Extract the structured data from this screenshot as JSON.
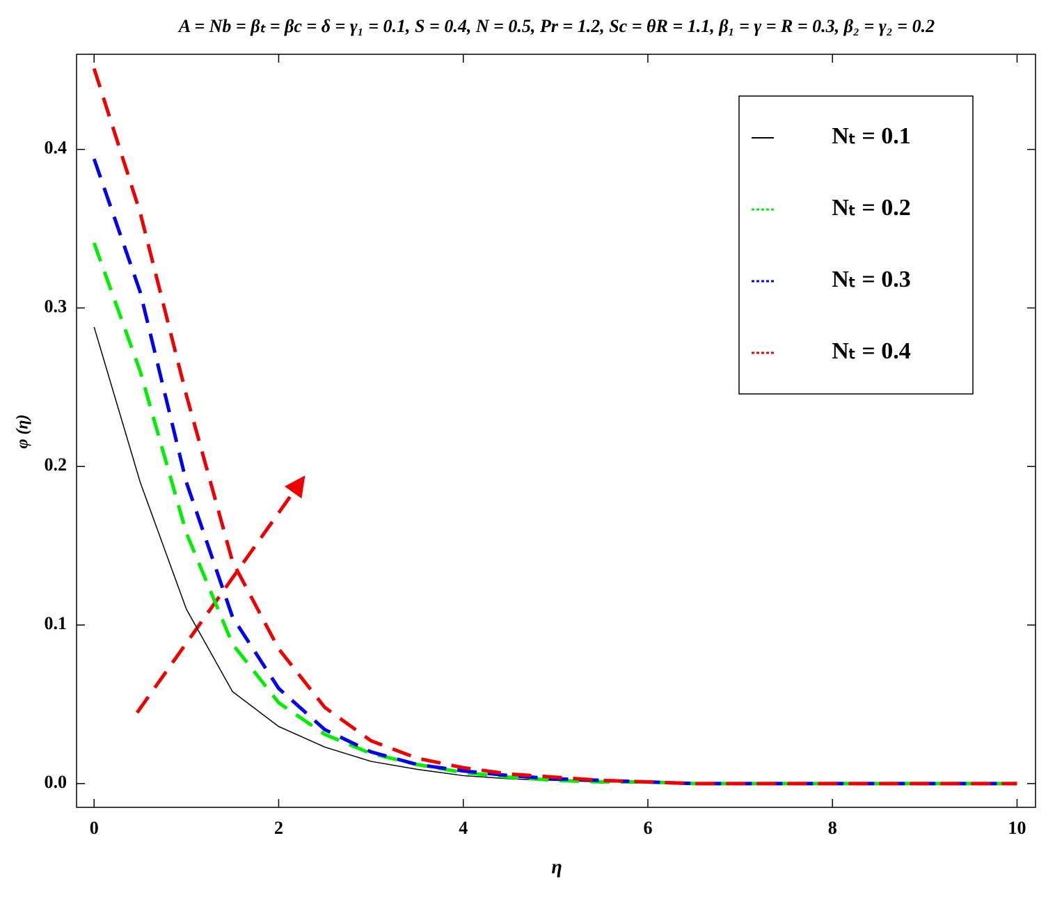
{
  "chart_data": {
    "type": "line",
    "title": "A = Nb = βₜ = βc = δ = γ₁ = 0.1, S = 0.4, N = 0.5, Pr = 1.2, Sc = θR = 1.1, β₁ = γ = R = 0.3, β₂ = γ₂ = 0.2",
    "x_label": "η",
    "y_label": "φ (η)",
    "x": [
      0,
      0.5,
      1,
      1.5,
      2,
      2.5,
      3,
      3.5,
      4,
      4.5,
      5,
      5.5,
      6,
      6.5,
      7,
      7.5,
      8,
      8.5,
      9,
      9.5,
      10
    ],
    "series": [
      {
        "name": "Nₜ = 0.1",
        "color": "#000000",
        "line_style": "solid",
        "values": [
          0.288,
          0.19,
          0.11,
          0.058,
          0.036,
          0.023,
          0.014,
          0.009,
          0.005,
          0.003,
          0.002,
          0.001,
          0.001,
          0,
          0,
          0,
          0,
          0,
          0,
          0,
          0
        ]
      },
      {
        "name": "Nₜ = 0.2",
        "color": "#00ee00",
        "line_style": "dashed",
        "values": [
          0.341,
          0.26,
          0.158,
          0.088,
          0.051,
          0.031,
          0.019,
          0.012,
          0.007,
          0.004,
          0.002,
          0.001,
          0.001,
          0,
          0,
          0,
          0,
          0,
          0,
          0,
          0
        ]
      },
      {
        "name": "Nₜ = 0.3",
        "color": "#0000ee",
        "line_style": "dashed",
        "values": [
          0.394,
          0.31,
          0.19,
          0.105,
          0.06,
          0.034,
          0.02,
          0.012,
          0.008,
          0.005,
          0.003,
          0.002,
          0.001,
          0,
          0,
          0,
          0,
          0,
          0,
          0,
          0
        ]
      },
      {
        "name": "Nₜ = 0.4",
        "color": "#ee0000",
        "line_style": "dashed",
        "values": [
          0.451,
          0.36,
          0.245,
          0.14,
          0.085,
          0.048,
          0.027,
          0.016,
          0.01,
          0.006,
          0.004,
          0.002,
          0.001,
          0,
          0,
          0,
          0,
          0,
          0,
          0,
          0
        ]
      }
    ],
    "xlim": [
      -0.19,
      10.2
    ],
    "ylim": [
      -0.015,
      0.46
    ],
    "xticks": [
      0,
      2,
      4,
      6,
      8,
      10
    ],
    "yticks": [
      {
        "value": 0,
        "label": "0.0"
      },
      0.1,
      0.2,
      0.3,
      0.4
    ],
    "legend": "top-right",
    "grid": false
  }
}
